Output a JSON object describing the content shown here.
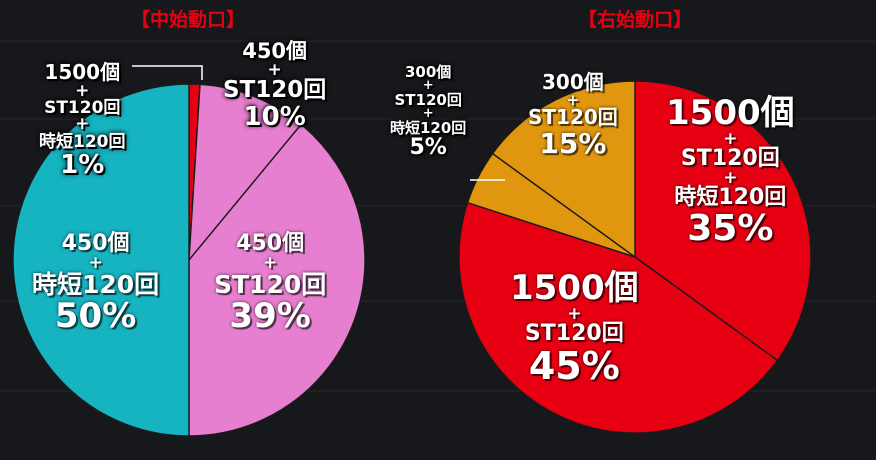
{
  "colors": {
    "red": "#e60012",
    "pink": "#e77fd0",
    "cyan": "#16b3c1",
    "orange": "#e0960f",
    "divider": "#1a1a1a",
    "title": "#e60012"
  },
  "chart_data": [
    {
      "type": "pie",
      "title": "【中始動口】",
      "slices": [
        {
          "lines": [
            "1500個",
            "+",
            "ST120回",
            "+",
            "時短120回"
          ],
          "percent_label": "1%",
          "value": 1,
          "color": "#e60012",
          "outside": true
        },
        {
          "lines": [
            "450個",
            "+",
            "ST120回"
          ],
          "percent_label": "10%",
          "value": 10,
          "color": "#e77fd0"
        },
        {
          "lines": [
            "450個",
            "+",
            "ST120回"
          ],
          "percent_label": "39%",
          "value": 39,
          "color": "#e77fd0"
        },
        {
          "lines": [
            "450個",
            "+",
            "時短120回"
          ],
          "percent_label": "50%",
          "value": 50,
          "color": "#16b3c1"
        }
      ]
    },
    {
      "type": "pie",
      "title": "【右始動口】",
      "slices": [
        {
          "lines": [
            "1500個",
            "+",
            "ST120回",
            "+",
            "時短120回"
          ],
          "percent_label": "35%",
          "value": 35,
          "color": "#e60012"
        },
        {
          "lines": [
            "1500個",
            "+",
            "ST120回"
          ],
          "percent_label": "45%",
          "value": 45,
          "color": "#e60012"
        },
        {
          "lines": [
            "300個",
            "+",
            "ST120回",
            "+",
            "時短120回"
          ],
          "percent_label": "5%",
          "value": 5,
          "color": "#e0960f",
          "outside": true
        },
        {
          "lines": [
            "300個",
            "+",
            "ST120回"
          ],
          "percent_label": "15%",
          "value": 15,
          "color": "#e0960f"
        }
      ]
    }
  ]
}
